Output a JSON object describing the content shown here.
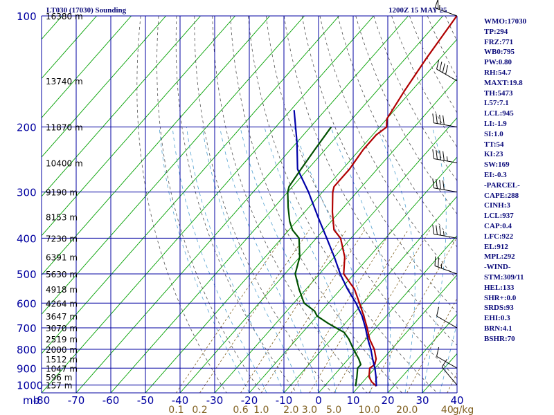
{
  "title_left": "LT030 (17030) Sounding",
  "title_right": "1200Z 15 MAY 25",
  "indices": [
    "WMO:17030",
    "TP:294",
    "FRZ:771",
    "WB0:795",
    "PW:0.80",
    "RH:54.7",
    "MAXT:19.8",
    "TH:5473",
    "L57:7.1",
    "LCL:945",
    "LI:-1.9",
    "SI:1.0",
    "TT:54",
    "KI:23",
    "SW:169",
    "EI:-0.3",
    "-PARCEL-",
    "CAPE:288",
    "CINH:3",
    "LCL:937",
    "CAP:0.4",
    "LFC:922",
    "EL:912",
    "MPL:292",
    "-WIND-",
    "STM:309/11",
    "HEL:133",
    "SHR+:0.0",
    "SRDS:93",
    "EHI:0.3",
    "BRN:4.1",
    "BSHR:70"
  ],
  "chart_data": {
    "type": "line",
    "xunit_label": "mb",
    "x_ticks": [
      -80,
      -70,
      -60,
      -50,
      -40,
      -30,
      -20,
      -10,
      0,
      10,
      20,
      30,
      40
    ],
    "x_tick_labels": [
      "-80",
      "-70",
      "-60",
      "-50",
      "-40",
      "-30",
      "-20",
      "-10",
      "0",
      "10",
      "20",
      "30",
      "40"
    ],
    "xlim": [
      -80,
      40
    ],
    "pressure_levels": [
      100,
      200,
      300,
      400,
      500,
      600,
      700,
      800,
      900,
      1000
    ],
    "pressure_labels": [
      "100",
      "200",
      "300",
      "400",
      "500",
      "600",
      "700",
      "800",
      "900",
      "1000"
    ],
    "ylim": [
      100,
      1050
    ],
    "y_scale": "log",
    "heights": [
      {
        "p": 100,
        "label": "16380 m"
      },
      {
        "p": 150,
        "label": "13740 m"
      },
      {
        "p": 200,
        "label": "11870 m"
      },
      {
        "p": 250,
        "label": "10400 m"
      },
      {
        "p": 300,
        "label": "9190 m"
      },
      {
        "p": 350,
        "label": "8153 m"
      },
      {
        "p": 400,
        "label": "7230 m"
      },
      {
        "p": 450,
        "label": "6391 m"
      },
      {
        "p": 500,
        "label": "5630 m"
      },
      {
        "p": 550,
        "label": "4918 m"
      },
      {
        "p": 600,
        "label": "4264 m"
      },
      {
        "p": 650,
        "label": "3647 m"
      },
      {
        "p": 700,
        "label": "3070 m"
      },
      {
        "p": 750,
        "label": "2519 m"
      },
      {
        "p": 800,
        "label": "2000 m"
      },
      {
        "p": 850,
        "label": "1512 m"
      },
      {
        "p": 900,
        "label": "1047 m"
      },
      {
        "p": 950,
        "label": "596 m"
      },
      {
        "p": 1000,
        "label": "157 m"
      }
    ],
    "mixing_ratios": [
      0.1,
      0.2,
      0.6,
      1.0,
      2.0,
      3.0,
      5.0,
      10.0,
      20.0,
      40
    ],
    "mixing_ratio_labels": [
      "0.1",
      "0.2",
      "0.6",
      "1.0",
      "2.0",
      "3.0",
      "5.0",
      "10.0",
      "20.0",
      "40"
    ],
    "mixing_ratio_unit": "g/kg",
    "series": [
      {
        "color": "#b00000",
        "points": [
          [
            100,
            -56
          ],
          [
            130,
            -54
          ],
          [
            160,
            -52
          ],
          [
            190,
            -50
          ],
          [
            200,
            -48
          ],
          [
            210,
            -49
          ],
          [
            230,
            -49
          ],
          [
            260,
            -48
          ],
          [
            290,
            -48
          ],
          [
            300,
            -47
          ],
          [
            340,
            -42
          ],
          [
            380,
            -37
          ],
          [
            400,
            -33
          ],
          [
            450,
            -27
          ],
          [
            500,
            -23
          ],
          [
            550,
            -16
          ],
          [
            600,
            -11
          ],
          [
            650,
            -6.5
          ],
          [
            700,
            -2.5
          ],
          [
            750,
            1
          ],
          [
            800,
            5
          ],
          [
            850,
            8
          ],
          [
            880,
            9
          ],
          [
            900,
            8.5
          ],
          [
            950,
            10.5
          ],
          [
            980,
            12.5
          ],
          [
            1007,
            15
          ]
        ]
      },
      {
        "color": "#0000a8",
        "points": [
          [
            180,
            -79
          ],
          [
            220,
            -70
          ],
          [
            260,
            -63
          ],
          [
            300,
            -54
          ],
          [
            350,
            -45
          ],
          [
            400,
            -37
          ],
          [
            450,
            -30
          ],
          [
            500,
            -24
          ],
          [
            550,
            -18
          ],
          [
            600,
            -12
          ],
          [
            650,
            -7
          ],
          [
            700,
            -3
          ],
          [
            750,
            0.5
          ],
          [
            800,
            4
          ],
          [
            850,
            7
          ],
          [
            900,
            10
          ],
          [
            950,
            12.5
          ],
          [
            1007,
            15
          ]
        ]
      },
      {
        "color": "#005000",
        "points": [
          [
            200,
            -64
          ],
          [
            230,
            -63
          ],
          [
            260,
            -62
          ],
          [
            290,
            -61
          ],
          [
            300,
            -60
          ],
          [
            330,
            -56
          ],
          [
            360,
            -52
          ],
          [
            380,
            -49
          ],
          [
            400,
            -45
          ],
          [
            450,
            -40
          ],
          [
            500,
            -37
          ],
          [
            550,
            -32
          ],
          [
            600,
            -27
          ],
          [
            630,
            -22
          ],
          [
            650,
            -20
          ],
          [
            680,
            -15
          ],
          [
            700,
            -11.5
          ],
          [
            720,
            -8
          ],
          [
            750,
            -5
          ],
          [
            800,
            -1
          ],
          [
            850,
            3
          ],
          [
            880,
            5
          ],
          [
            900,
            5
          ],
          [
            950,
            7
          ],
          [
            1007,
            9
          ]
        ]
      }
    ],
    "wind_barbs": [
      {
        "p": 100,
        "dir": 290,
        "speed": 55
      },
      {
        "p": 150,
        "dir": 300,
        "speed": 40
      },
      {
        "p": 200,
        "dir": 280,
        "speed": 40
      },
      {
        "p": 250,
        "dir": 280,
        "speed": 45
      },
      {
        "p": 300,
        "dir": 280,
        "speed": 40
      },
      {
        "p": 400,
        "dir": 280,
        "speed": 35
      },
      {
        "p": 500,
        "dir": 290,
        "speed": 25
      },
      {
        "p": 700,
        "dir": 300,
        "speed": 10
      },
      {
        "p": 900,
        "dir": 300,
        "speed": 10
      },
      {
        "p": 1000,
        "dir": 320,
        "speed": 10
      }
    ],
    "colors": {
      "frame": "#0000a0",
      "isotherm": "#00a000",
      "dry_adiabat": "#505050",
      "moist_adiabat": "#50a0d0",
      "mixing_ratio": "#806020",
      "axis_text": "#0000a0",
      "mr_text": "#806020"
    }
  }
}
